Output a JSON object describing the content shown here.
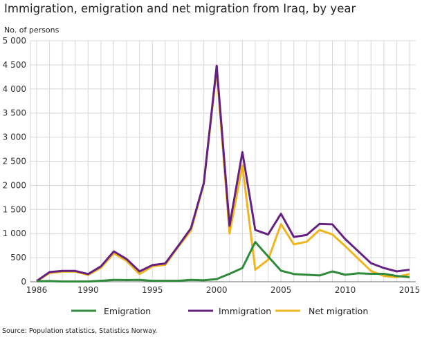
{
  "title": "Immigration, emigration and net migration from Iraq, by year",
  "source": "Source: Population statistics, Statistics Norway.",
  "chart_data": {
    "type": "line",
    "title": "Immigration, emigration and net migration from Iraq, by year",
    "ylabel": "No. of persons",
    "xlabel": "",
    "ylim": [
      0,
      5000
    ],
    "xlim": [
      1986,
      2015
    ],
    "yticks": [
      0,
      500,
      1000,
      1500,
      2000,
      2500,
      3000,
      3500,
      4000,
      4500,
      5000
    ],
    "ytick_labels": [
      "0",
      "500",
      "1 000",
      "1 500",
      "2 000",
      "2 500",
      "3 000",
      "3 500",
      "4 000",
      "4 500",
      "5 000"
    ],
    "xticks": [
      1986,
      1990,
      1995,
      2000,
      2005,
      2010,
      2015
    ],
    "xtick_labels": [
      "1986",
      "1990",
      "1995",
      "2000",
      "2005",
      "2010",
      "2015"
    ],
    "grid": true,
    "legend_position": "bottom",
    "x": [
      1986,
      1987,
      1988,
      1989,
      1990,
      1991,
      1992,
      1993,
      1994,
      1995,
      1996,
      1997,
      1998,
      1999,
      2000,
      2001,
      2002,
      2003,
      2004,
      2005,
      2006,
      2007,
      2008,
      2009,
      2010,
      2011,
      2012,
      2013,
      2014,
      2015
    ],
    "series": [
      {
        "name": "Emigration",
        "color": "#2e8a3a",
        "values": [
          10,
          15,
          5,
          5,
          5,
          20,
          40,
          35,
          40,
          20,
          20,
          20,
          40,
          30,
          55,
          165,
          285,
          825,
          525,
          230,
          160,
          145,
          130,
          215,
          145,
          175,
          165,
          165,
          120,
          95
        ]
      },
      {
        "name": "Immigration",
        "color": "#642181",
        "values": [
          15,
          200,
          225,
          225,
          160,
          320,
          630,
          470,
          215,
          345,
          380,
          740,
          1110,
          2050,
          4480,
          1160,
          2690,
          1075,
          980,
          1410,
          930,
          970,
          1200,
          1190,
          885,
          635,
          385,
          285,
          215,
          250
        ]
      },
      {
        "name": "Net migration",
        "color": "#efb51c",
        "values": [
          10,
          180,
          210,
          210,
          140,
          290,
          590,
          430,
          160,
          320,
          350,
          720,
          1060,
          2030,
          4400,
          1000,
          2410,
          250,
          455,
          1195,
          775,
          830,
          1075,
          980,
          740,
          480,
          225,
          120,
          95,
          160
        ]
      }
    ]
  }
}
